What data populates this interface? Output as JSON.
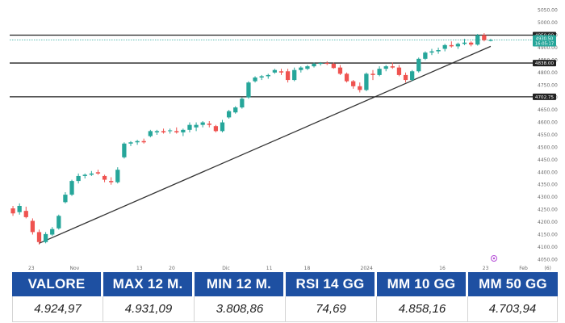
{
  "chart_data": {
    "type": "candlestick",
    "x_tick_labels": [
      "23",
      "Nov",
      "13",
      "20",
      "Dic",
      "11",
      "18",
      "2024",
      "16",
      "23",
      "Feb",
      "(6)"
    ],
    "y_tick_labels": [
      "4050.00",
      "4100.00",
      "4150.00",
      "4200.00",
      "4250.00",
      "4300.00",
      "4350.00",
      "4400.00",
      "4450.00",
      "4500.00",
      "4550.00",
      "4600.00",
      "4650.00",
      "4700.00",
      "4750.00",
      "4800.00",
      "4850.00",
      "4900.00",
      "4950.00",
      "5000.00",
      "5050.00"
    ],
    "ylim": [
      4035,
      5065
    ],
    "candles": [
      {
        "o": 4255,
        "h": 4265,
        "l": 4225,
        "c": 4235
      },
      {
        "o": 4240,
        "h": 4275,
        "l": 4230,
        "c": 4265
      },
      {
        "o": 4245,
        "h": 4262,
        "l": 4215,
        "c": 4220
      },
      {
        "o": 4205,
        "h": 4215,
        "l": 4150,
        "c": 4160
      },
      {
        "o": 4160,
        "h": 4170,
        "l": 4110,
        "c": 4120
      },
      {
        "o": 4120,
        "h": 4160,
        "l": 4115,
        "c": 4152
      },
      {
        "o": 4150,
        "h": 4180,
        "l": 4145,
        "c": 4172
      },
      {
        "o": 4175,
        "h": 4230,
        "l": 4170,
        "c": 4225
      },
      {
        "o": 4280,
        "h": 4320,
        "l": 4275,
        "c": 4310
      },
      {
        "o": 4310,
        "h": 4370,
        "l": 4305,
        "c": 4365
      },
      {
        "o": 4365,
        "h": 4395,
        "l": 4355,
        "c": 4385
      },
      {
        "o": 4385,
        "h": 4395,
        "l": 4375,
        "c": 4390
      },
      {
        "o": 4390,
        "h": 4405,
        "l": 4385,
        "c": 4395
      },
      {
        "o": 4400,
        "h": 4410,
        "l": 4390,
        "c": 4395
      },
      {
        "o": 4385,
        "h": 4390,
        "l": 4360,
        "c": 4370
      },
      {
        "o": 4365,
        "h": 4380,
        "l": 4350,
        "c": 4360
      },
      {
        "o": 4360,
        "h": 4420,
        "l": 4355,
        "c": 4410
      },
      {
        "o": 4460,
        "h": 4520,
        "l": 4455,
        "c": 4515
      },
      {
        "o": 4515,
        "h": 4525,
        "l": 4505,
        "c": 4520
      },
      {
        "o": 4520,
        "h": 4530,
        "l": 4510,
        "c": 4525
      },
      {
        "o": 4525,
        "h": 4535,
        "l": 4515,
        "c": 4520
      },
      {
        "o": 4545,
        "h": 4570,
        "l": 4540,
        "c": 4565
      },
      {
        "o": 4560,
        "h": 4570,
        "l": 4550,
        "c": 4565
      },
      {
        "o": 4565,
        "h": 4575,
        "l": 4555,
        "c": 4560
      },
      {
        "o": 4565,
        "h": 4575,
        "l": 4555,
        "c": 4568
      },
      {
        "o": 4565,
        "h": 4580,
        "l": 4555,
        "c": 4560
      },
      {
        "o": 4560,
        "h": 4575,
        "l": 4545,
        "c": 4570
      },
      {
        "o": 4570,
        "h": 4600,
        "l": 4560,
        "c": 4590
      },
      {
        "o": 4580,
        "h": 4600,
        "l": 4565,
        "c": 4590
      },
      {
        "o": 4590,
        "h": 4605,
        "l": 4580,
        "c": 4600
      },
      {
        "o": 4595,
        "h": 4605,
        "l": 4580,
        "c": 4590
      },
      {
        "o": 4585,
        "h": 4590,
        "l": 4560,
        "c": 4565
      },
      {
        "o": 4565,
        "h": 4610,
        "l": 4560,
        "c": 4600
      },
      {
        "o": 4620,
        "h": 4650,
        "l": 4615,
        "c": 4645
      },
      {
        "o": 4640,
        "h": 4665,
        "l": 4635,
        "c": 4660
      },
      {
        "o": 4660,
        "h": 4700,
        "l": 4655,
        "c": 4695
      },
      {
        "o": 4700,
        "h": 4765,
        "l": 4695,
        "c": 4760
      },
      {
        "o": 4765,
        "h": 4785,
        "l": 4760,
        "c": 4780
      },
      {
        "o": 4780,
        "h": 4790,
        "l": 4770,
        "c": 4785
      },
      {
        "o": 4785,
        "h": 4795,
        "l": 4775,
        "c": 4790
      },
      {
        "o": 4800,
        "h": 4815,
        "l": 4795,
        "c": 4810
      },
      {
        "o": 4805,
        "h": 4815,
        "l": 4790,
        "c": 4800
      },
      {
        "o": 4805,
        "h": 4815,
        "l": 4760,
        "c": 4770
      },
      {
        "o": 4770,
        "h": 4820,
        "l": 4765,
        "c": 4810
      },
      {
        "o": 4810,
        "h": 4825,
        "l": 4800,
        "c": 4820
      },
      {
        "o": 4815,
        "h": 4830,
        "l": 4810,
        "c": 4825
      },
      {
        "o": 4825,
        "h": 4840,
        "l": 4820,
        "c": 4835
      },
      {
        "o": 4835,
        "h": 4842,
        "l": 4828,
        "c": 4838
      },
      {
        "o": 4838,
        "h": 4845,
        "l": 4830,
        "c": 4835
      },
      {
        "o": 4835,
        "h": 4840,
        "l": 4815,
        "c": 4818
      },
      {
        "o": 4820,
        "h": 4830,
        "l": 4790,
        "c": 4795
      },
      {
        "o": 4795,
        "h": 4800,
        "l": 4760,
        "c": 4765
      },
      {
        "o": 4765,
        "h": 4770,
        "l": 4735,
        "c": 4745
      },
      {
        "o": 4745,
        "h": 4760,
        "l": 4720,
        "c": 4730
      },
      {
        "o": 4730,
        "h": 4800,
        "l": 4725,
        "c": 4795
      },
      {
        "o": 4795,
        "h": 4810,
        "l": 4770,
        "c": 4790
      },
      {
        "o": 4790,
        "h": 4825,
        "l": 4785,
        "c": 4815
      },
      {
        "o": 4815,
        "h": 4830,
        "l": 4805,
        "c": 4825
      },
      {
        "o": 4825,
        "h": 4840,
        "l": 4815,
        "c": 4820
      },
      {
        "o": 4820,
        "h": 4830,
        "l": 4785,
        "c": 4790
      },
      {
        "o": 4790,
        "h": 4800,
        "l": 4760,
        "c": 4770
      },
      {
        "o": 4770,
        "h": 4810,
        "l": 4765,
        "c": 4805
      },
      {
        "o": 4805,
        "h": 4860,
        "l": 4800,
        "c": 4855
      },
      {
        "o": 4855,
        "h": 4885,
        "l": 4850,
        "c": 4880
      },
      {
        "o": 4880,
        "h": 4895,
        "l": 4870,
        "c": 4885
      },
      {
        "o": 4885,
        "h": 4900,
        "l": 4875,
        "c": 4890
      },
      {
        "o": 4895,
        "h": 4915,
        "l": 4885,
        "c": 4910
      },
      {
        "o": 4910,
        "h": 4925,
        "l": 4900,
        "c": 4905
      },
      {
        "o": 4905,
        "h": 4920,
        "l": 4895,
        "c": 4915
      },
      {
        "o": 4915,
        "h": 4935,
        "l": 4910,
        "c": 4920
      },
      {
        "o": 4920,
        "h": 4925,
        "l": 4905,
        "c": 4912
      },
      {
        "o": 4912,
        "h": 4955,
        "l": 4908,
        "c": 4950
      },
      {
        "o": 4950,
        "h": 4958,
        "l": 4925,
        "c": 4930
      },
      {
        "o": 4930,
        "h": 4935,
        "l": 4925,
        "c": 4930
      }
    ],
    "horizontal_levels": [
      {
        "label": "4950.00",
        "value": 4950,
        "tag_color": "#222222"
      },
      {
        "label": "4838.00",
        "value": 4838,
        "tag_color": "#222222"
      },
      {
        "label": "4702.75",
        "value": 4702.75,
        "tag_color": "#222222"
      }
    ],
    "current_price": {
      "value": 4930.5,
      "label": "4930.50",
      "countdown": "16:05:17",
      "color": "#26a69a"
    },
    "trendline": {
      "start": {
        "x_index": 4,
        "y": 4115
      },
      "end": {
        "x_index": 73,
        "y": 4905
      }
    },
    "colors": {
      "up": "#26a69a",
      "down": "#ef5350",
      "level_line": "#222222",
      "trendline": "#333333"
    }
  },
  "stats_table": {
    "headers": [
      "VALORE",
      "MAX 12 M.",
      "MIN 12 M.",
      "RSI 14 GG",
      "MM 10 GG",
      "MM 50 GG"
    ],
    "values": [
      "4.924,97",
      "4.931,09",
      "3.808,86",
      "74,69",
      "4.858,16",
      "4.703,94"
    ],
    "header_color": "#1e50a2"
  }
}
